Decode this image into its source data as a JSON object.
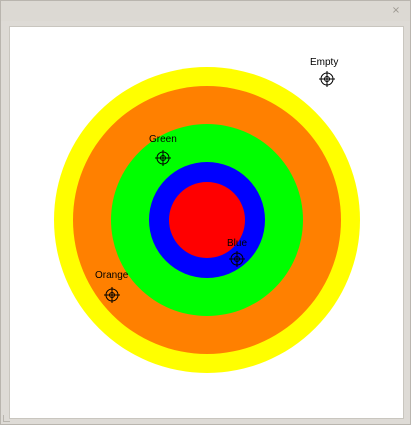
{
  "window": {
    "close_glyph": "×"
  },
  "target": {
    "rings": [
      {
        "name": "yellow",
        "color": "#ffff00"
      },
      {
        "name": "orange",
        "color": "#ff8000"
      },
      {
        "name": "green",
        "color": "#00ff00"
      },
      {
        "name": "blue",
        "color": "#0000ff"
      },
      {
        "name": "red",
        "color": "#ff0000"
      }
    ]
  },
  "markers": [
    {
      "label": "Empty",
      "icon": "crosshair-icon"
    },
    {
      "label": "Green",
      "icon": "crosshair-icon"
    },
    {
      "label": "Blue",
      "icon": "crosshair-icon"
    },
    {
      "label": "Orange",
      "icon": "crosshair-icon"
    }
  ]
}
